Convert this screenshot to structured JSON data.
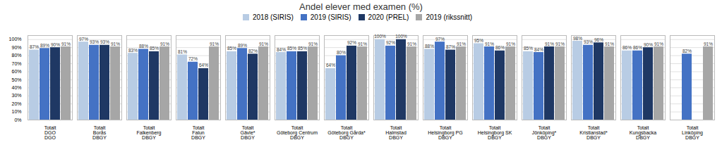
{
  "chart_data": {
    "type": "bar",
    "title": "Andel elever med examen (%)",
    "categories": [
      "Totalt\nDGO\nDGO",
      "Totalt\nBorås\nDBGY",
      "Totalt\nFalkenberg\nDBGY",
      "Totalt\nFalun\nDBGY",
      "Totalt\nGävle*\nDBGY",
      "Totalt\nGöteborg Centrum\nDBGY",
      "Totalt\nGöteborg Gårda*\nDBGY",
      "Totalt\nHalmstad\nDBGY",
      "Totalt\nHelsingborg PG\nDBGY",
      "Totalt\nHelsingborg SK\nDBGY",
      "Totalt\nJönköping*\nDBGY",
      "Totalt\nKristianstad*\nDBGY",
      "Totalt\nKungsbacka\nDBGY",
      "Totalt\nLinköping\nDBGY"
    ],
    "series": [
      {
        "name": "2018 (SIRIS)",
        "color": "#b8cce4",
        "values": [
          87,
          97,
          83,
          81,
          85,
          84,
          64,
          100,
          88,
          95,
          85,
          98,
          86,
          null
        ],
        "value_labels": [
          "87%",
          "97%",
          "83%",
          "81%",
          "85%",
          "84%",
          "64%",
          "100%",
          "88%",
          "95%",
          "85%",
          "98%",
          "86%",
          null
        ]
      },
      {
        "name": "2019 (SIRIS)",
        "color": "#4472c4",
        "values": [
          89,
          93,
          88,
          72,
          89,
          85,
          80,
          92,
          97,
          91,
          84,
          93,
          86,
          82
        ],
        "value_labels": [
          "89%",
          "93%",
          "88%",
          "72%",
          "89%",
          "85%",
          "80%",
          "92%",
          "97%",
          "91%",
          "84%",
          "93%",
          "86%",
          "82%"
        ]
      },
      {
        "name": "2020 (PREL)",
        "color": "#1f3864",
        "values": [
          90,
          93,
          85,
          64,
          82,
          85,
          92,
          100,
          87,
          86,
          91,
          96,
          90,
          null
        ],
        "value_labels": [
          "90%",
          "93%",
          "85%",
          "64%",
          "82%",
          "85%",
          "92%",
          "100%",
          "87%",
          "86%",
          "91%",
          "96%",
          "90%",
          null
        ]
      },
      {
        "name": "2019 (rikssnitt)",
        "color": "#a6a6a6",
        "values": [
          91,
          91,
          91,
          91,
          91,
          91,
          91,
          91,
          91,
          91,
          91,
          91,
          91,
          91
        ],
        "value_labels": [
          "91%",
          "91%",
          "91%",
          "91%",
          "91%",
          "91%",
          "91%",
          "91%",
          "91%",
          "91%",
          "91%",
          "91%",
          "91%",
          "91%"
        ]
      }
    ],
    "ylim": [
      0,
      105
    ],
    "yticks": [
      {
        "value": 0,
        "label": "0%"
      },
      {
        "value": 10,
        "label": "10%"
      },
      {
        "value": 20,
        "label": "20%"
      },
      {
        "value": 30,
        "label": "30%"
      },
      {
        "value": 40,
        "label": "40%"
      },
      {
        "value": 50,
        "label": "50%"
      },
      {
        "value": 60,
        "label": "60%"
      },
      {
        "value": 70,
        "label": "70%"
      },
      {
        "value": 80,
        "label": "80%"
      },
      {
        "value": 90,
        "label": "90%"
      },
      {
        "value": 100,
        "label": "100%"
      }
    ],
    "grid": true,
    "legend": "upper center",
    "data_labels": true
  }
}
